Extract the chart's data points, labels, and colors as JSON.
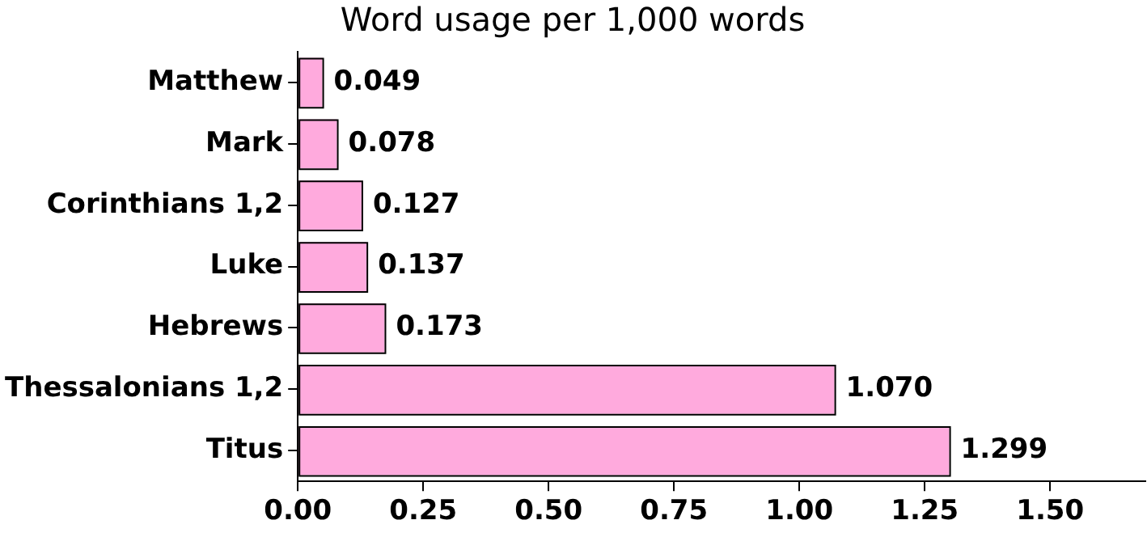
{
  "chart_data": {
    "type": "bar",
    "orientation": "horizontal",
    "title": "Word usage per 1,000 words",
    "categories": [
      "Matthew",
      "Mark",
      "Corinthians 1,2",
      "Luke",
      "Hebrews",
      "Thessalonians 1,2",
      "Titus"
    ],
    "values": [
      0.049,
      0.078,
      0.127,
      0.137,
      0.173,
      1.07,
      1.299
    ],
    "value_labels": [
      "0.049",
      "0.078",
      "0.127",
      "0.137",
      "0.173",
      "1.070",
      "1.299"
    ],
    "color": "#ffaadd",
    "xlim": [
      0,
      1.69
    ],
    "xticks": [
      {
        "value": 0,
        "label": "0.00"
      },
      {
        "value": 0.25,
        "label": "0.25"
      },
      {
        "value": 0.5,
        "label": "0.50"
      },
      {
        "value": 0.75,
        "label": "0.75"
      },
      {
        "value": 1,
        "label": "1.00"
      },
      {
        "value": 1.25,
        "label": "1.25"
      },
      {
        "value": 1.5,
        "label": "1.50"
      }
    ],
    "grid": false,
    "legend": false
  }
}
